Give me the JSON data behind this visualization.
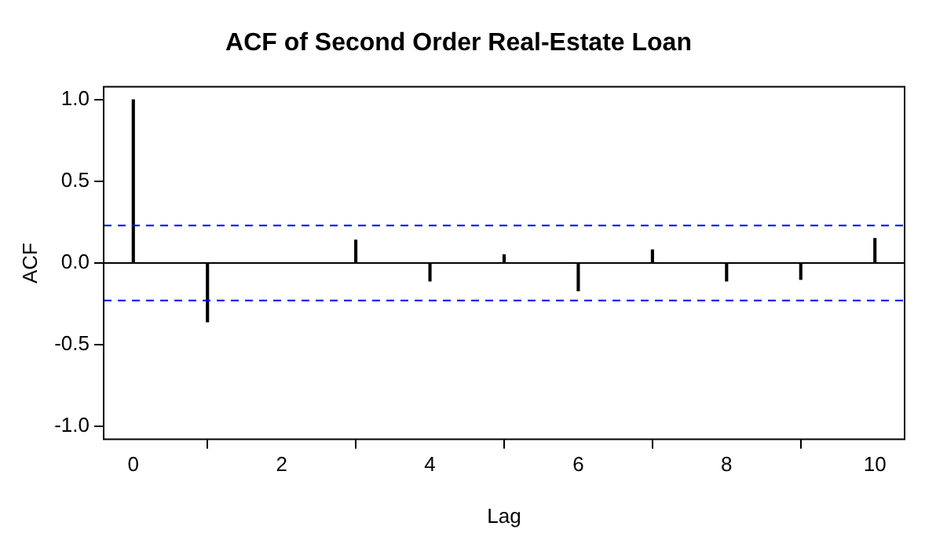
{
  "chart_data": {
    "type": "bar",
    "title": "ACF of Second Order Real-Estate Loan",
    "xlabel": "Lag",
    "ylabel": "ACF",
    "x": [
      0,
      1,
      2,
      3,
      4,
      5,
      6,
      7,
      8,
      9,
      10
    ],
    "series": [
      {
        "color": "#000000",
        "values": [
          1.0,
          -0.36,
          0.0,
          0.14,
          -0.11,
          0.05,
          -0.17,
          0.08,
          -0.11,
          -0.1,
          0.15
        ]
      }
    ],
    "xlim": [
      -0.4,
      10.4
    ],
    "xticks": [
      0,
      2,
      4,
      6,
      8,
      10
    ],
    "ylim": [
      -1.08,
      1.08
    ],
    "yticks": [
      {
        "value": -1,
        "label": "-1.0"
      },
      {
        "value": -0.5,
        "label": "-0.5"
      },
      {
        "value": 0,
        "label": "0.0"
      },
      {
        "value": 0.5,
        "label": "0.5"
      },
      {
        "value": 1,
        "label": "1.0"
      }
    ],
    "ref_lines": [
      {
        "axis": "y",
        "value": 0,
        "color": "#000000",
        "line_style": "solid"
      },
      {
        "axis": "y",
        "value": 0.23,
        "color": "#0000ff",
        "line_style": "dashed"
      },
      {
        "axis": "y",
        "value": -0.23,
        "color": "#0000ff",
        "line_style": "dashed"
      }
    ],
    "grid": false,
    "legend": false
  }
}
